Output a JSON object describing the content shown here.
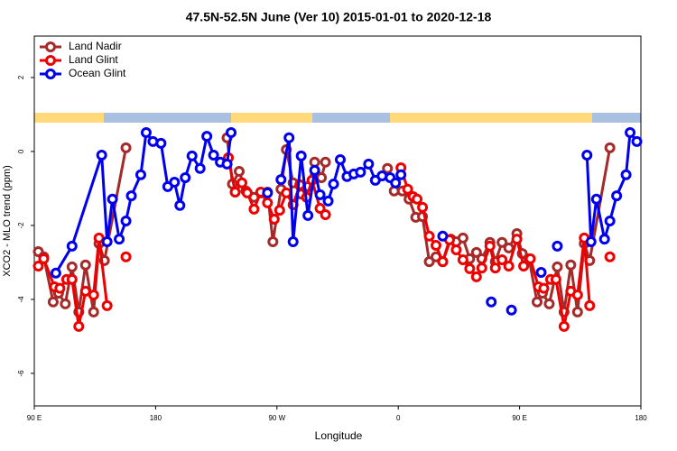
{
  "chart_data": {
    "type": "line",
    "title": "47.5N-52.5N June (Ver 10)   2015-01-01 to 2020-12-18",
    "xlabel": "Longitude",
    "ylabel": "XCO2 - MLO trend (ppm)",
    "xlim": [
      90,
      540
    ],
    "xticks": [
      {
        "value": 90,
        "label": "90 E"
      },
      {
        "value": 180,
        "label": "180"
      },
      {
        "value": 270,
        "label": "90 W"
      },
      {
        "value": 360,
        "label": "0"
      },
      {
        "value": 450,
        "label": "90 E"
      },
      {
        "value": 540,
        "label": "180"
      }
    ],
    "ylim": [
      -6.88,
      3.12
    ],
    "yticks": [
      -6,
      -4,
      -2,
      0,
      2
    ],
    "legend": "top-left",
    "markers": true,
    "series": [
      {
        "name": "Land Nadir",
        "color": "#a52a2a",
        "x": [
          93,
          97,
          104,
          108,
          113,
          118,
          123,
          128,
          134,
          138,
          142,
          158,
          null,
          233,
          237,
          242,
          247,
          253,
          258,
          263,
          267,
          273,
          277,
          282,
          288,
          293,
          298,
          303,
          306,
          null,
          352,
          357,
          363,
          368,
          373,
          378,
          383,
          388,
          393,
          399,
          403,
          408,
          413,
          418,
          422,
          428,
          432,
          437,
          442,
          448,
          452,
          457,
          463,
          467,
          472,
          478,
          483,
          488,
          493,
          498,
          502,
          517
        ],
        "values": [
          -2.71,
          -2.85,
          -4.07,
          -3.83,
          -4.12,
          -3.12,
          -4.34,
          -3.07,
          -4.34,
          -2.49,
          -2.95,
          0.1,
          null,
          0.37,
          -0.88,
          -0.54,
          -1.07,
          -1.24,
          -1.12,
          -1.1,
          -2.44,
          -1.02,
          0.05,
          -0.85,
          -1.15,
          -0.95,
          -0.29,
          -0.71,
          -0.29,
          null,
          -0.46,
          -1.07,
          -1.07,
          -1.29,
          -1.78,
          -1.76,
          -2.98,
          -2.85,
          -2.98,
          -2.37,
          -2.44,
          -2.34,
          -2.9,
          -2.73,
          -2.9,
          -2.46,
          -2.98,
          -2.46,
          -2.61,
          -2.22,
          -2.76,
          -2.9,
          -4.07,
          -3.83,
          -4.12,
          -3.12,
          -4.34,
          -3.07,
          -4.34,
          -2.49,
          -2.95,
          0.1
        ]
      },
      {
        "name": "Land Glint",
        "color": "#ee0000",
        "x": [
          93,
          97,
          105,
          109,
          114,
          118,
          123,
          128,
          134,
          138,
          144,
          null,
          158,
          null,
          234,
          239,
          244,
          248,
          253,
          258,
          263,
          268,
          272,
          277,
          282,
          287,
          292,
          296,
          302,
          306,
          null,
          362,
          367,
          371,
          374,
          378,
          383,
          388,
          393,
          398,
          403,
          408,
          413,
          418,
          422,
          428,
          432,
          437,
          442,
          448,
          453,
          458,
          464,
          468,
          473,
          477,
          483,
          488,
          493,
          498,
          502,
          null,
          517
        ],
        "values": [
          -3.1,
          -2.9,
          -3.66,
          -3.7,
          -3.46,
          -3.46,
          -4.73,
          -3.78,
          -3.88,
          -2.34,
          -4.17,
          null,
          -2.85,
          null,
          -0.17,
          -1.1,
          -0.85,
          -1.12,
          -1.56,
          -1.1,
          -1.39,
          -1.83,
          -1.59,
          -1.12,
          -1.44,
          -0.9,
          -1.24,
          -0.78,
          -1.54,
          -1.71,
          null,
          -0.44,
          -1.02,
          -1.22,
          -1.29,
          -1.51,
          -2.29,
          -2.54,
          -2.98,
          -2.39,
          -2.66,
          -2.93,
          -3.17,
          -3.39,
          -3.15,
          -2.56,
          -3.15,
          -2.93,
          -3.1,
          -2.37,
          -3.1,
          -2.9,
          -3.66,
          -3.7,
          -3.46,
          -3.46,
          -4.73,
          -3.78,
          -3.88,
          -2.34,
          -4.17,
          null,
          -2.85
        ]
      },
      {
        "name": "Ocean Glint",
        "color": "#0000ee",
        "x": [
          106,
          118,
          140,
          144,
          148,
          153,
          158,
          162,
          169,
          173,
          178,
          184,
          189,
          194,
          198,
          202,
          207,
          213,
          218,
          223,
          228,
          233,
          236,
          null,
          263,
          null,
          273,
          279,
          282,
          288,
          293,
          298,
          302,
          308,
          312,
          317,
          322,
          327,
          332,
          338,
          343,
          348,
          354,
          358,
          362,
          null,
          393,
          null,
          429,
          null,
          444,
          null,
          466,
          null,
          478,
          null,
          500,
          503,
          507,
          513,
          517,
          522,
          529,
          532,
          537
        ],
        "values": [
          -3.29,
          -2.56,
          -0.1,
          -2.44,
          -1.29,
          -2.37,
          -1.88,
          -1.2,
          -0.63,
          0.51,
          0.27,
          0.22,
          -0.95,
          -0.83,
          -1.46,
          -0.71,
          -0.12,
          -0.46,
          0.41,
          -0.1,
          -0.29,
          -0.34,
          0.51,
          null,
          -1.12,
          null,
          -0.76,
          0.37,
          -2.44,
          -0.12,
          -1.73,
          -0.51,
          -1.17,
          -1.34,
          -0.88,
          -0.22,
          -0.68,
          -0.61,
          -0.56,
          -0.34,
          -0.78,
          -0.66,
          -0.71,
          -0.85,
          -0.63,
          null,
          -2.29,
          null,
          -4.07,
          null,
          -4.29,
          null,
          -3.27,
          null,
          -2.56,
          null,
          -0.1,
          -2.44,
          -1.29,
          -2.37,
          -1.88,
          -1.2,
          -0.63,
          0.51,
          0.27
        ]
      }
    ]
  }
}
